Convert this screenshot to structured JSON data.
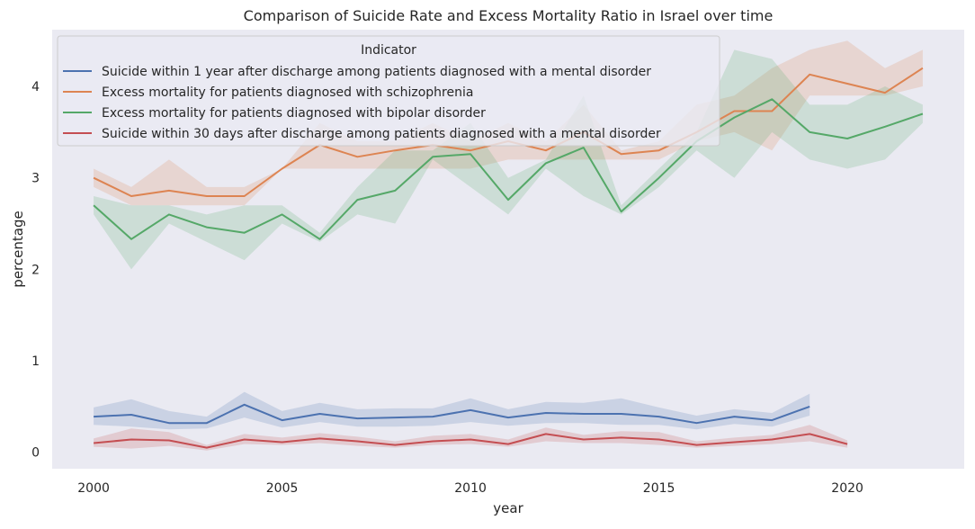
{
  "chart_data": {
    "type": "line",
    "title": "Comparison of Suicide Rate and Excess Mortality Ratio in Israel over time",
    "xlabel": "year",
    "ylabel": "percentage",
    "xlim": [
      1998.9,
      2023.1
    ],
    "ylim": [
      -0.18,
      4.62
    ],
    "xticks": [
      2000,
      2005,
      2010,
      2015,
      2020
    ],
    "yticks": [
      0,
      1,
      2,
      3,
      4
    ],
    "grid": false,
    "background": "#eaeaf2",
    "legend": {
      "title": "Indicator",
      "placement": "top-left"
    },
    "series": [
      {
        "name": "Suicide within 1 year after discharge among patients diagnosed with a mental disorder",
        "color": "#4c72b0",
        "x": [
          2000,
          2001,
          2002,
          2003,
          2004,
          2005,
          2006,
          2007,
          2008,
          2009,
          2010,
          2011,
          2012,
          2013,
          2014,
          2015,
          2016,
          2017,
          2018,
          2019
        ],
        "values": [
          0.39,
          0.41,
          0.32,
          0.32,
          0.52,
          0.35,
          0.42,
          0.37,
          0.38,
          0.39,
          0.46,
          0.38,
          0.43,
          0.42,
          0.42,
          0.39,
          0.32,
          0.39,
          0.35,
          0.5
        ],
        "lower": [
          0.3,
          0.28,
          0.25,
          0.26,
          0.38,
          0.27,
          0.33,
          0.28,
          0.28,
          0.29,
          0.33,
          0.29,
          0.32,
          0.32,
          0.3,
          0.3,
          0.25,
          0.31,
          0.28,
          0.4
        ],
        "upper": [
          0.49,
          0.58,
          0.45,
          0.39,
          0.66,
          0.45,
          0.54,
          0.47,
          0.48,
          0.48,
          0.59,
          0.47,
          0.55,
          0.54,
          0.59,
          0.49,
          0.4,
          0.47,
          0.43,
          0.64
        ]
      },
      {
        "name": "Excess mortality for patients diagnosed with schizophrenia",
        "color": "#dd8452",
        "x": [
          2000,
          2001,
          2002,
          2003,
          2004,
          2005,
          2006,
          2007,
          2008,
          2009,
          2010,
          2011,
          2012,
          2013,
          2014,
          2015,
          2016,
          2017,
          2018,
          2019,
          2020,
          2021,
          2022
        ],
        "values": [
          3.0,
          2.8,
          2.86,
          2.8,
          2.8,
          3.1,
          3.36,
          3.23,
          3.3,
          3.36,
          3.3,
          3.4,
          3.3,
          3.5,
          3.26,
          3.3,
          3.5,
          3.73,
          3.73,
          4.13,
          4.03,
          3.93,
          4.2
        ],
        "lower": [
          2.9,
          2.7,
          2.7,
          2.7,
          2.7,
          3.1,
          3.1,
          3.1,
          3.1,
          3.1,
          3.1,
          3.2,
          3.2,
          3.2,
          3.2,
          3.2,
          3.4,
          3.5,
          3.3,
          3.9,
          3.9,
          3.9,
          4.0
        ],
        "upper": [
          3.1,
          2.9,
          3.2,
          2.9,
          2.9,
          3.1,
          3.6,
          3.4,
          3.4,
          3.6,
          3.4,
          3.6,
          3.4,
          3.8,
          3.3,
          3.4,
          3.8,
          3.9,
          4.2,
          4.4,
          4.5,
          4.2,
          4.4
        ]
      },
      {
        "name": "Excess mortality for patients diagnosed with bipolar disorder",
        "color": "#55a868",
        "x": [
          2000,
          2001,
          2002,
          2003,
          2004,
          2005,
          2006,
          2007,
          2008,
          2009,
          2010,
          2011,
          2012,
          2013,
          2014,
          2015,
          2016,
          2017,
          2018,
          2019,
          2020,
          2021,
          2022
        ],
        "values": [
          2.7,
          2.33,
          2.6,
          2.46,
          2.4,
          2.6,
          2.33,
          2.76,
          2.86,
          3.23,
          3.26,
          2.76,
          3.16,
          3.33,
          2.63,
          3.0,
          3.4,
          3.66,
          3.86,
          3.5,
          3.43,
          3.56,
          3.7
        ],
        "lower": [
          2.6,
          2.0,
          2.5,
          2.3,
          2.1,
          2.5,
          2.3,
          2.6,
          2.5,
          3.2,
          2.9,
          2.6,
          3.1,
          2.8,
          2.6,
          2.9,
          3.3,
          3.0,
          3.5,
          3.2,
          3.1,
          3.2,
          3.6
        ],
        "upper": [
          2.8,
          2.7,
          2.7,
          2.6,
          2.7,
          2.7,
          2.4,
          2.9,
          3.3,
          3.3,
          3.6,
          3.0,
          3.2,
          3.9,
          2.7,
          3.1,
          3.5,
          4.4,
          4.3,
          3.8,
          3.8,
          4.0,
          3.8
        ]
      },
      {
        "name": "Suicide within 30 days after discharge among patients diagnosed with a mental disorder",
        "color": "#c44e52",
        "x": [
          2000,
          2001,
          2002,
          2003,
          2004,
          2005,
          2006,
          2007,
          2008,
          2009,
          2010,
          2011,
          2012,
          2013,
          2014,
          2015,
          2016,
          2017,
          2018,
          2019,
          2020
        ],
        "values": [
          0.1,
          0.14,
          0.13,
          0.05,
          0.14,
          0.11,
          0.15,
          0.12,
          0.08,
          0.12,
          0.14,
          0.09,
          0.2,
          0.14,
          0.16,
          0.14,
          0.08,
          0.11,
          0.14,
          0.2,
          0.09
        ],
        "lower": [
          0.06,
          0.04,
          0.07,
          0.02,
          0.09,
          0.08,
          0.1,
          0.07,
          0.05,
          0.08,
          0.09,
          0.06,
          0.12,
          0.1,
          0.1,
          0.08,
          0.05,
          0.07,
          0.09,
          0.12,
          0.05
        ],
        "upper": [
          0.15,
          0.26,
          0.22,
          0.08,
          0.2,
          0.16,
          0.21,
          0.17,
          0.12,
          0.18,
          0.2,
          0.14,
          0.27,
          0.19,
          0.23,
          0.22,
          0.12,
          0.16,
          0.19,
          0.3,
          0.13
        ]
      }
    ]
  }
}
